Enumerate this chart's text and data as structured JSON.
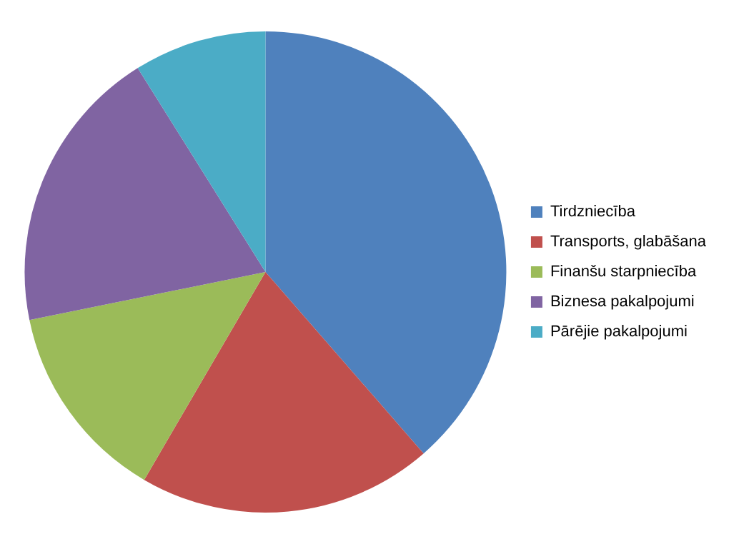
{
  "chart_data": {
    "type": "pie",
    "categories": [
      "Tirdzniecība",
      "Transports, glabāšana",
      "Finanšu starpniecība",
      "Biznesa pakalpojumi",
      "Pārējie pakalpojumi"
    ],
    "values": [
      38.6,
      19.8,
      13.4,
      19.3,
      8.9
    ],
    "colors": [
      "#4f81bd",
      "#c0504d",
      "#9bbb59",
      "#8064a2",
      "#4bacc6"
    ],
    "legend": "right"
  }
}
